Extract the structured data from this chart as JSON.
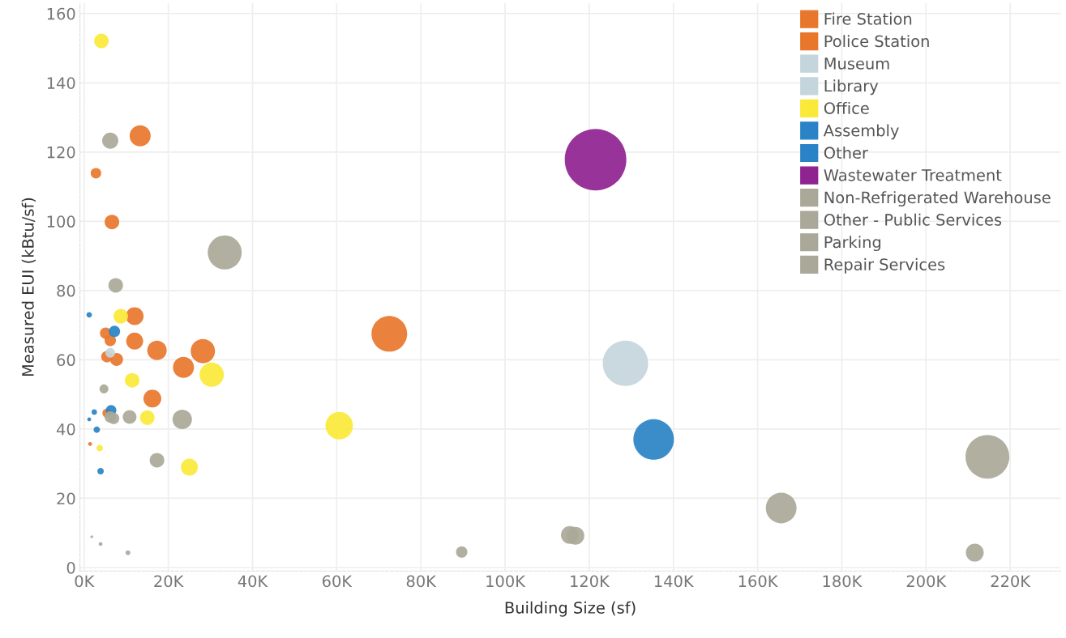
{
  "chart_data": {
    "type": "bubble",
    "xlabel": "Building Size (sf)",
    "ylabel": "Measured EUI (kBtu/sf)",
    "xlim": [
      -1,
      232
    ],
    "ylim": [
      -1,
      163
    ],
    "xticks": [
      {
        "value": 0,
        "label": "0K"
      },
      {
        "value": 20,
        "label": "20K"
      },
      {
        "value": 40,
        "label": "40K"
      },
      {
        "value": 60,
        "label": "60K"
      },
      {
        "value": 80,
        "label": "80K"
      },
      {
        "value": 100,
        "label": "100K"
      },
      {
        "value": 120,
        "label": "120K"
      },
      {
        "value": 140,
        "label": "140K"
      },
      {
        "value": 160,
        "label": "160K"
      },
      {
        "value": 180,
        "label": "180K"
      },
      {
        "value": 200,
        "label": "200K"
      },
      {
        "value": 220,
        "label": "220K"
      }
    ],
    "yticks": [
      0,
      20,
      40,
      60,
      80,
      100,
      120,
      140,
      160
    ],
    "grid": true,
    "legend": "top right",
    "marker": "circle",
    "series": [
      {
        "name": "Fire Station",
        "color": "#e8762b",
        "x": [
          13.3,
          2.8,
          6.6,
          12.0,
          5.1,
          6.2,
          12.0,
          17.3,
          28.2,
          5.4,
          7.7,
          23.6,
          16.2,
          5.4,
          1.4,
          72.5
        ],
        "values": [
          124.7,
          113.9,
          99.8,
          72.6,
          67.7,
          65.6,
          65.4,
          62.7,
          62.5,
          60.9,
          60.1,
          57.8,
          48.8,
          44.6,
          35.7,
          67.5
        ],
        "sizes": [
          0.117,
          0.029,
          0.056,
          0.084,
          0.034,
          0.034,
          0.076,
          0.1,
          0.156,
          0.034,
          0.044,
          0.117,
          0.084,
          0.021,
          0.004,
          0.335
        ]
      },
      {
        "name": "Police Station",
        "color": "#e8762b"
      },
      {
        "name": "Museum",
        "color": "#c5d5dc",
        "x": [
          6.2,
          128.6
        ],
        "values": [
          62.0,
          59.0
        ],
        "sizes": [
          0.025,
          0.543
        ]
      },
      {
        "name": "Library",
        "color": "#c5d5dc"
      },
      {
        "name": "Office",
        "color": "#fbe93a",
        "x": [
          4.1,
          8.7,
          11.4,
          15.0,
          25.0,
          3.7,
          30.3,
          60.6
        ],
        "values": [
          152.1,
          72.6,
          54.1,
          43.3,
          29.0,
          34.5,
          55.7,
          41.0
        ],
        "sizes": [
          0.056,
          0.056,
          0.056,
          0.056,
          0.076,
          0.011,
          0.156,
          0.2
        ]
      },
      {
        "name": "Assembly",
        "color": "#2a83c6",
        "x": [
          1.2,
          7.2,
          2.4,
          1.2,
          6.4,
          3.0,
          3.9,
          135.3
        ],
        "values": [
          73.0,
          68.2,
          44.9,
          42.8,
          45.4,
          39.8,
          27.8,
          37.0
        ],
        "sizes": [
          0.008,
          0.034,
          0.008,
          0.004,
          0.029,
          0.011,
          0.011,
          0.433
        ]
      },
      {
        "name": "Other",
        "color": "#2a83c6"
      },
      {
        "name": "Wastewater Treatment",
        "color": "#8f2390",
        "x": [
          121.5
        ],
        "values": [
          117.8
        ],
        "sizes": [
          1
        ]
      },
      {
        "name": "Non-Refrigerated Warehouse",
        "color": "#aaa898",
        "x": [
          6.2,
          33.4,
          7.5,
          4.7,
          6.2,
          7.0,
          10.8,
          23.3,
          17.3,
          1.8,
          3.9,
          10.4,
          89.7,
          115.4,
          116.7,
          165.6,
          211.6,
          214.6
        ],
        "values": [
          123.3,
          91.0,
          81.5,
          51.6,
          43.5,
          43.1,
          43.5,
          42.8,
          31.0,
          8.9,
          6.8,
          4.3,
          4.5,
          9.4,
          9.2,
          17.2,
          4.3,
          32.0
        ],
        "sizes": [
          0.069,
          0.305,
          0.056,
          0.021,
          0.034,
          0.034,
          0.05,
          0.1,
          0.056,
          0.002,
          0.004,
          0.006,
          0.034,
          0.084,
          0.084,
          0.25,
          0.084,
          0.505
        ]
      },
      {
        "name": "Other - Public Services",
        "color": "#aaa898"
      },
      {
        "name": "Parking",
        "color": "#aaa898"
      },
      {
        "name": "Repair Services",
        "color": "#aaa898"
      }
    ]
  }
}
